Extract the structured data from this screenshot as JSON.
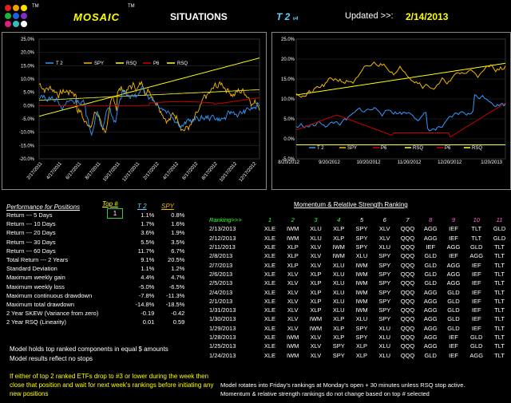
{
  "header": {
    "tm1": "TM",
    "brand": "MOSAIC",
    "tm2": "TM",
    "situations": "SITUATIONS",
    "model": "T 2",
    "model_ver": "v4",
    "updated_label": "Updated >>:",
    "updated_date": "2/14/2013"
  },
  "colors": {
    "t2": "#3399ff",
    "spy": "#f5b800",
    "rsq": "#ffff33",
    "p6": "#cc0000",
    "trend": "#ffff00"
  },
  "left_chart": {
    "legend": [
      "T 2",
      "SPY",
      "RSQ",
      "P6",
      "RSQ"
    ],
    "y_ticks": [
      "25.0%",
      "20.0%",
      "15.0%",
      "10.0%",
      "5.0%",
      "0.0%",
      "-5.0%",
      "-10.0%",
      "-15.0%",
      "-20.0%"
    ],
    "x_ticks": [
      "2/17/2011",
      "4/17/2011",
      "6/17/2011",
      "8/17/2011",
      "10/17/2011",
      "12/17/2011",
      "2/17/2012",
      "4/17/2012",
      "6/17/2012",
      "8/17/2012",
      "10/17/2012",
      "12/17/2012"
    ]
  },
  "right_chart": {
    "legend": [
      "T 2",
      "SPY",
      "P6",
      "RSQ",
      "P6",
      "RSQ"
    ],
    "y_ticks": [
      "25.0%",
      "20.0%",
      "15.0%",
      "10.0%",
      "5.0%",
      "0.0%",
      "-5.0%"
    ],
    "x_ticks": [
      "8/20/2012",
      "9/20/2012",
      "10/20/2012",
      "11/20/2012",
      "12/20/2012",
      "1/20/2013"
    ]
  },
  "performance": {
    "title": "Performance for Positions",
    "top_label": "Top #",
    "top_value": "1",
    "col_t2": "T 2",
    "col_spy": "SPY",
    "rows": [
      {
        "label": "Return --- 5 Days",
        "t2": "1.1%",
        "spy": "0.8%"
      },
      {
        "label": "Return --- 10 Days",
        "t2": "1.7%",
        "spy": "1.6%"
      },
      {
        "label": "Return --- 20 Days",
        "t2": "3.6%",
        "spy": "1.9%"
      },
      {
        "label": "Return --- 30 Days",
        "t2": "5.5%",
        "spy": "3.5%"
      },
      {
        "label": "Return --- 60 Days",
        "t2": "11.7%",
        "spy": "6.7%"
      },
      {
        "label": "Total Return --- 2 Years",
        "t2": "9.1%",
        "spy": "20.5%"
      },
      {
        "label": "Standard Deviation",
        "t2": "1.1%",
        "spy": "1.2%"
      },
      {
        "label": "Maximum weekly gain",
        "t2": "4.4%",
        "spy": "4.7%"
      },
      {
        "label": "Maximum weekly loss",
        "t2": "-5.0%",
        "spy": "-6.5%"
      },
      {
        "label": "Maximum continuous drawdown",
        "t2": "-7.8%",
        "spy": "-11.3%"
      },
      {
        "label": "Maximum total drawdown",
        "t2": "-14.8%",
        "spy": "-18.5%"
      },
      {
        "label": "2 Year SKEW  (Variance from zero)",
        "t2": "-0.19",
        "spy": "-0.42"
      },
      {
        "label": "2 Year RSQ  (Linearity)",
        "t2": "0.01",
        "spy": "0.59"
      }
    ],
    "note1": "Model holds top ranked  components in equal  $ amounts",
    "note2": "Model results reflect no stops",
    "warning": "If either of top 2 ranked ETFs drop to #3 or lower during the week then close that position and wait for next week's rankings before initiating any new positions"
  },
  "ranking": {
    "title": "Momentum & Relative Strength Ranking",
    "header_label": "Ranking>>>",
    "ranks": [
      "1",
      "2",
      "3",
      "4",
      "5",
      "6",
      "7",
      "8",
      "9",
      "10",
      "11"
    ],
    "rows": [
      {
        "date": "2/13/2013",
        "etfs": [
          "XLE",
          "IWM",
          "XLU",
          "XLP",
          "SPY",
          "XLV",
          "QQQ",
          "AGG",
          "IEF",
          "TLT",
          "GLD"
        ]
      },
      {
        "date": "2/12/2013",
        "etfs": [
          "XLE",
          "IWM",
          "XLU",
          "XLP",
          "SPY",
          "XLV",
          "QQQ",
          "AGG",
          "IEF",
          "TLT",
          "GLD"
        ]
      },
      {
        "date": "2/11/2013",
        "etfs": [
          "XLE",
          "XLP",
          "XLV",
          "IWM",
          "SPY",
          "XLU",
          "QQQ",
          "IEF",
          "AGG",
          "GLD",
          "TLT"
        ]
      },
      {
        "date": "2/8/2013",
        "etfs": [
          "XLE",
          "XLP",
          "XLV",
          "IWM",
          "XLU",
          "SPY",
          "QQQ",
          "GLD",
          "IEF",
          "AGG",
          "TLT"
        ]
      },
      {
        "date": "2/7/2013",
        "etfs": [
          "XLE",
          "XLP",
          "XLV",
          "XLU",
          "IWM",
          "SPY",
          "QQQ",
          "GLD",
          "AGG",
          "IEF",
          "TLT"
        ]
      },
      {
        "date": "2/6/2013",
        "etfs": [
          "XLE",
          "XLV",
          "XLP",
          "XLU",
          "IWM",
          "SPY",
          "QQQ",
          "GLD",
          "AGG",
          "IEF",
          "TLT"
        ]
      },
      {
        "date": "2/5/2013",
        "etfs": [
          "XLE",
          "XLV",
          "XLP",
          "XLU",
          "IWM",
          "SPY",
          "QQQ",
          "GLD",
          "AGG",
          "IEF",
          "TLT"
        ]
      },
      {
        "date": "2/4/2013",
        "etfs": [
          "XLE",
          "XLV",
          "XLP",
          "XLU",
          "IWM",
          "SPY",
          "QQQ",
          "AGG",
          "GLD",
          "IEF",
          "TLT"
        ]
      },
      {
        "date": "2/1/2013",
        "etfs": [
          "XLE",
          "XLV",
          "XLP",
          "XLU",
          "IWM",
          "SPY",
          "QQQ",
          "AGG",
          "GLD",
          "IEF",
          "TLT"
        ]
      },
      {
        "date": "1/31/2013",
        "etfs": [
          "XLE",
          "XLV",
          "XLP",
          "XLU",
          "IWM",
          "SPY",
          "QQQ",
          "AGG",
          "GLD",
          "IEF",
          "TLT"
        ]
      },
      {
        "date": "1/30/2013",
        "etfs": [
          "XLE",
          "XLV",
          "IWM",
          "XLP",
          "XLU",
          "SPY",
          "QQQ",
          "AGG",
          "GLD",
          "IEF",
          "TLT"
        ]
      },
      {
        "date": "1/29/2013",
        "etfs": [
          "XLE",
          "XLV",
          "IWM",
          "XLP",
          "SPY",
          "XLU",
          "QQQ",
          "AGG",
          "GLD",
          "IEF",
          "TLT"
        ]
      },
      {
        "date": "1/28/2013",
        "etfs": [
          "XLE",
          "IWM",
          "XLV",
          "XLP",
          "SPY",
          "XLU",
          "QQQ",
          "AGG",
          "IEF",
          "GLD",
          "TLT"
        ]
      },
      {
        "date": "1/25/2013",
        "etfs": [
          "XLE",
          "IWM",
          "XLV",
          "SPY",
          "XLP",
          "XLU",
          "QQQ",
          "AGG",
          "IEF",
          "GLD",
          "TLT"
        ]
      },
      {
        "date": "1/24/2013",
        "etfs": [
          "XLE",
          "IWM",
          "XLV",
          "SPY",
          "XLP",
          "XLU",
          "QQQ",
          "GLD",
          "IEF",
          "AGG",
          "TLT"
        ]
      }
    ],
    "note1": "Model rotates into Friday's rankings at Monday's open + 30 minutes unless RSQ stop active.",
    "note2": "Momentum & relative strength rankings do not change based on top # selected"
  }
}
